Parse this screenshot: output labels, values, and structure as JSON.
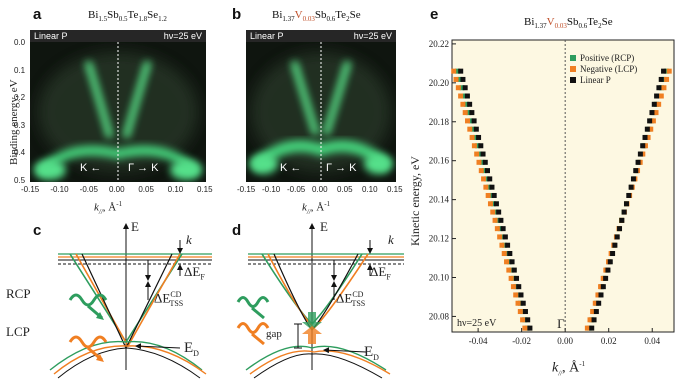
{
  "panels": {
    "a": {
      "letter": "a",
      "title_parts": [
        "Bi",
        "1.5",
        "Sb",
        "0.5",
        "Te",
        "1.8",
        "Se",
        "1.2"
      ],
      "header_left": "Linear P",
      "header_right": "hν=25 eV",
      "k_left": "K ←",
      "gamma_k": "Γ → K"
    },
    "b": {
      "letter": "b",
      "title_parts": [
        "Bi",
        "1.37",
        "V",
        "0.03",
        "Sb",
        "0.6",
        "Te",
        "2",
        "Se"
      ],
      "header_left": "Linear P",
      "header_right": "hν=25 eV",
      "k_left": "K ←",
      "gamma_k": "Γ → K"
    },
    "c": {
      "letter": "c",
      "E": "E",
      "k": "k",
      "dEF": "ΔE",
      "dEF_sub": "F",
      "dTSS": "ΔE",
      "dTSS_sup": "CD",
      "dTSS_sub": "TSS",
      "RCP": "RCP",
      "LCP": "LCP",
      "ED": "E",
      "ED_sub": "D"
    },
    "d": {
      "letter": "d",
      "E": "E",
      "k": "k",
      "dEF": "ΔE",
      "dEF_sub": "F",
      "dTSS": "ΔE",
      "dTSS_sup": "CD",
      "dTSS_sub": "TSS",
      "gap": "gap",
      "ED": "E",
      "ED_sub": "D"
    },
    "e": {
      "letter": "e",
      "title_parts": [
        "Bi",
        "1.37",
        "V",
        "0.03",
        "Sb",
        "0.6",
        "Te",
        "2",
        "Se"
      ],
      "hv_label": "hν=25 eV",
      "gamma": "Γ"
    }
  },
  "arpes_axes": {
    "y_label": "Binding energy, eV",
    "y_ticks": [
      "0.0",
      "0.1",
      "0.2",
      "0.3",
      "0.4",
      "0.5"
    ],
    "x_label_main": "k",
    "x_label_sub": "//",
    "x_label_unit": ", Å",
    "x_label_exp": "-1",
    "x_ticks": [
      "-0.15",
      "-0.10",
      "-0.05",
      "0.00",
      "0.05",
      "0.10",
      "0.15"
    ]
  },
  "colors": {
    "rcp": "#2e9d5e",
    "lcp": "#f07f22",
    "linear": "#111111",
    "vanadium": "#c0502a",
    "panel_bg": "#fdf8e2"
  },
  "chart_data": {
    "type": "scatter",
    "title": "Bi1.37V0.03Sb0.6Te2Se",
    "xlabel": "k//, Å-1",
    "ylabel": "Kinetic energy, eV",
    "xlim": [
      -0.052,
      0.05
    ],
    "ylim": [
      20.072,
      20.222
    ],
    "x_ticks": [
      -0.04,
      -0.02,
      0.0,
      0.02,
      0.04
    ],
    "x_tick_labels": [
      "-0.04",
      "-0.02",
      "0.00",
      "0.02",
      "0.04"
    ],
    "y_ticks": [
      20.08,
      20.1,
      20.12,
      20.14,
      20.16,
      20.18,
      20.2,
      20.22
    ],
    "y_tick_labels": [
      "20.08",
      "20.10",
      "20.12",
      "20.14",
      "20.16",
      "20.18",
      "20.20",
      "20.22"
    ],
    "legend_position": "top-right",
    "series": [
      {
        "name": "Positive (RCP)",
        "color": "#2e9d5e",
        "branch_x_at_top": [
          -0.0495,
          0.0465
        ],
        "branch_x_at_bottom": [
          -0.0175,
          0.011
        ]
      },
      {
        "name": "Negative (LCP)",
        "color": "#f07f22",
        "branch_x_at_top": [
          -0.0512,
          0.0478
        ],
        "branch_x_at_bottom": [
          -0.0185,
          0.0102
        ]
      },
      {
        "name": "Linear P",
        "color": "#111111",
        "branch_x_at_top": [
          -0.048,
          0.0452
        ],
        "branch_x_at_bottom": [
          -0.0162,
          0.0122
        ]
      }
    ],
    "energy_top": 20.206,
    "energy_bottom": 20.074,
    "points_per_branch": 32
  }
}
